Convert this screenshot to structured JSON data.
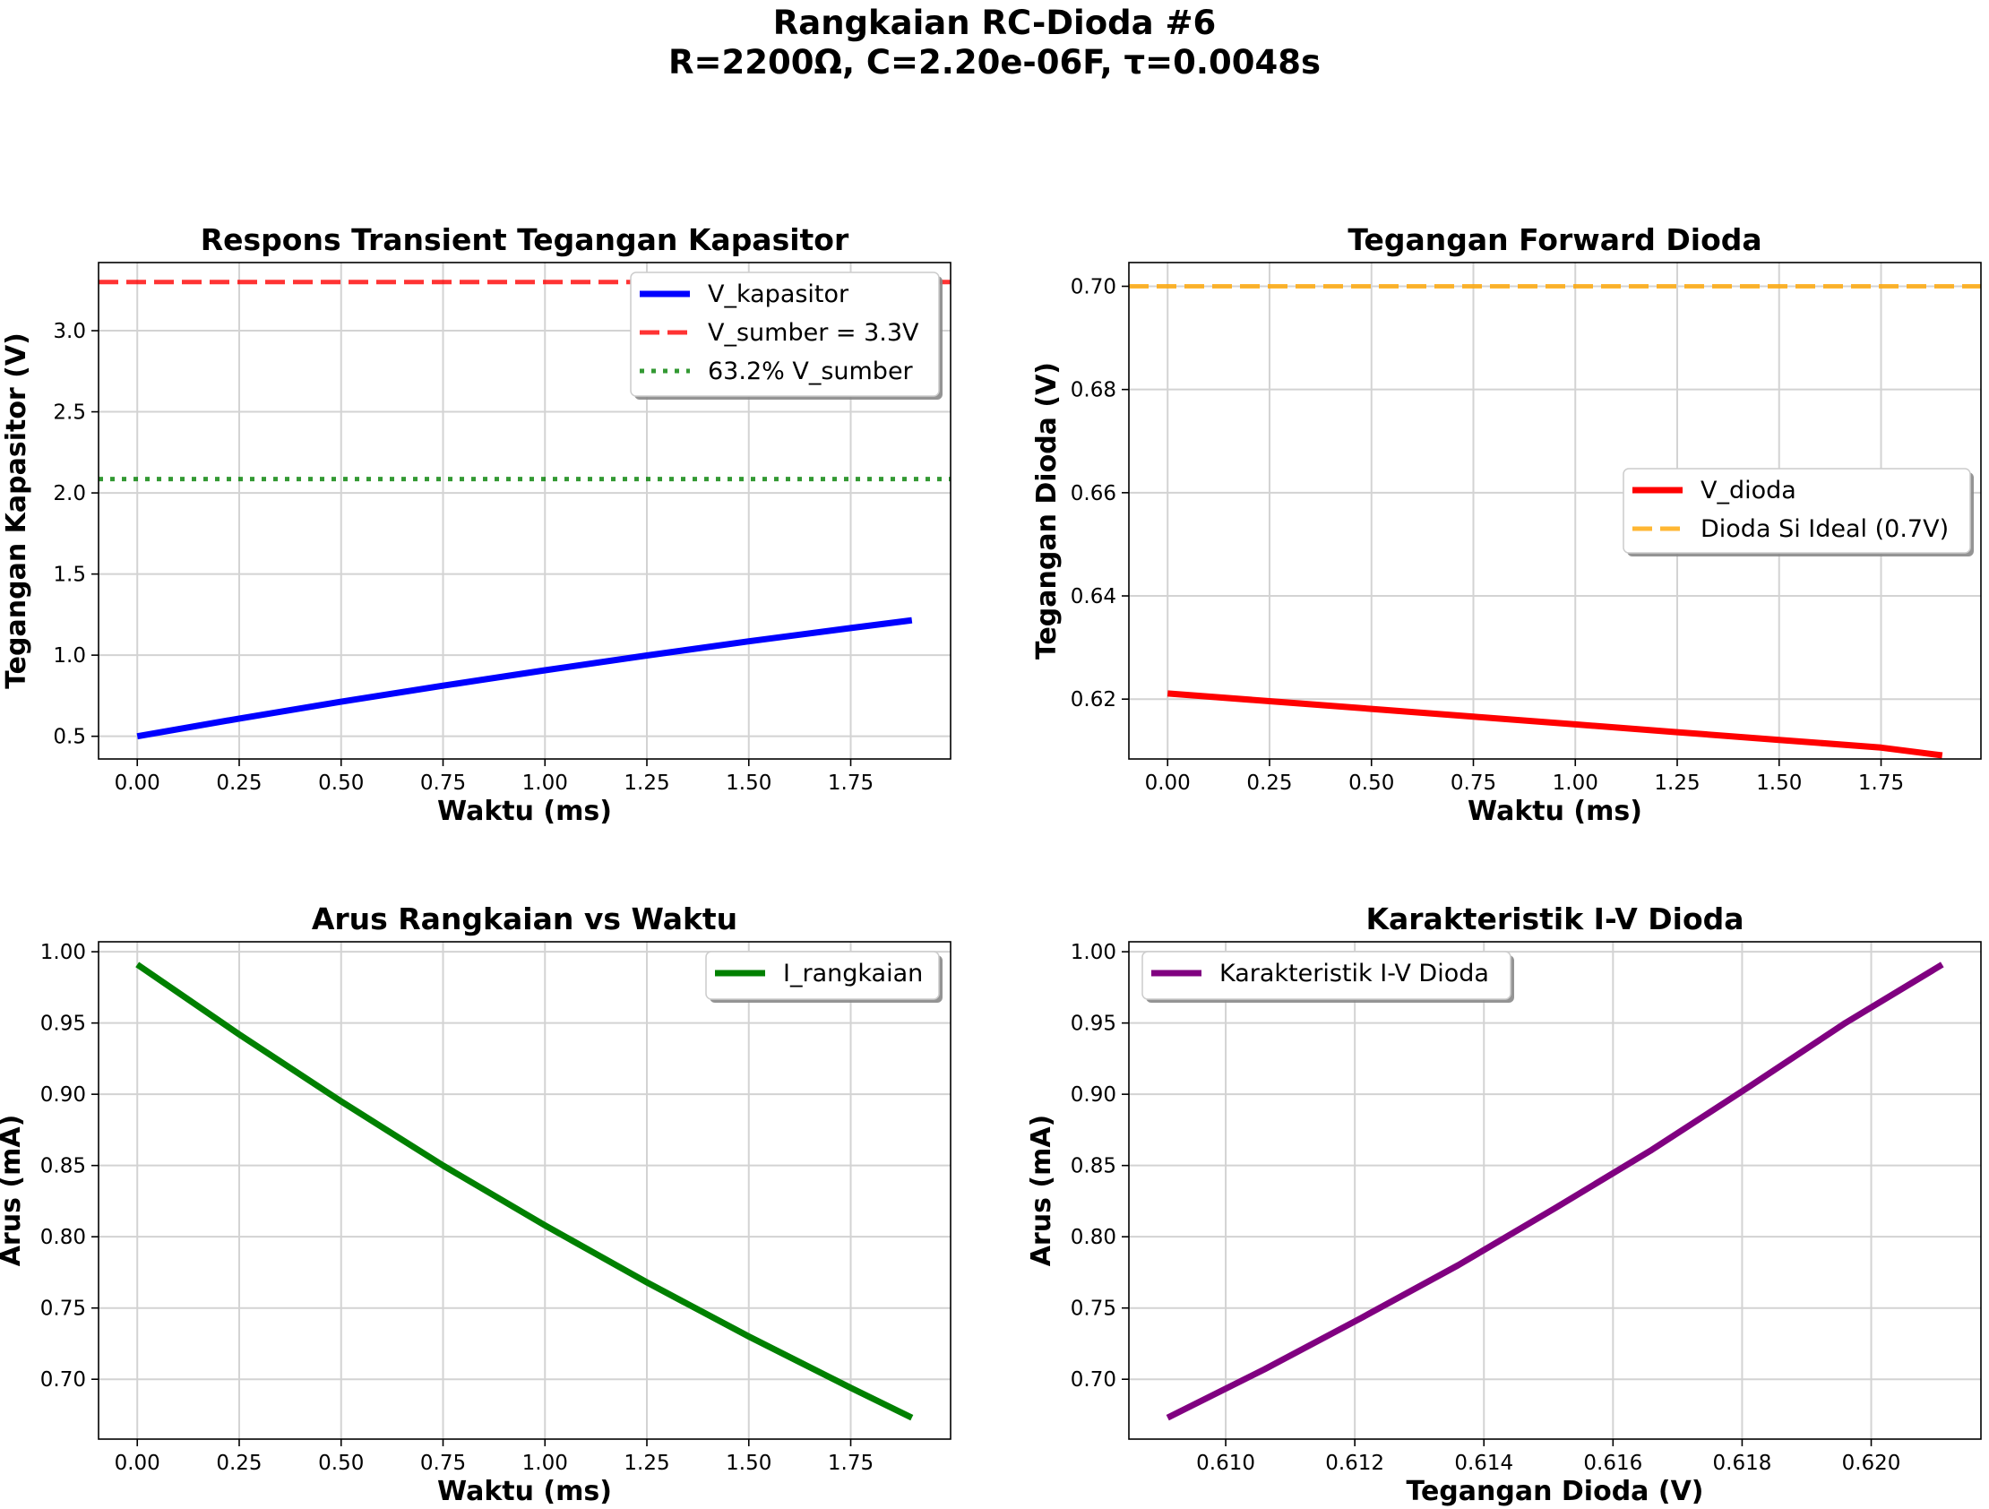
{
  "figure": {
    "title_line1": "Rangkaian RC-Dioda #6",
    "title_line2": "R=2200Ω, C=2.20e-06F, τ=0.0048s"
  },
  "chart_data": [
    {
      "type": "line",
      "title": "Respons Transient Tegangan Kapasitor",
      "xlabel": "Waktu (ms)",
      "ylabel": "Tegangan Kapasitor (V)",
      "xlim": [
        -0.095,
        1.995
      ],
      "ylim": [
        0.36,
        3.42
      ],
      "xticks": [
        0.0,
        0.25,
        0.5,
        0.75,
        1.0,
        1.25,
        1.5,
        1.75
      ],
      "xtick_labels": [
        "0.00",
        "0.25",
        "0.50",
        "0.75",
        "1.00",
        "1.25",
        "1.50",
        "1.75"
      ],
      "yticks": [
        0.5,
        1.0,
        1.5,
        2.0,
        2.5,
        3.0
      ],
      "ytick_labels": [
        "0.5",
        "1.0",
        "1.5",
        "2.0",
        "2.5",
        "3.0"
      ],
      "grid": true,
      "legend_position": "upper right",
      "series": [
        {
          "name": "V_kapasitor",
          "color": "#0000ff",
          "style": "solid",
          "x": [
            0.0,
            0.25,
            0.5,
            0.75,
            1.0,
            1.25,
            1.5,
            1.75,
            1.9
          ],
          "y": [
            0.5,
            0.609,
            0.713,
            0.812,
            0.907,
            0.998,
            1.085,
            1.167,
            1.215
          ]
        },
        {
          "name": "V_sumber = 3.3V",
          "color": "#ff0000",
          "style": "dashed",
          "hline": 3.3
        },
        {
          "name": "63.2% V_sumber",
          "color": "#008000",
          "style": "dotted",
          "hline": 2.0856
        }
      ]
    },
    {
      "type": "line",
      "title": "Tegangan Forward Dioda",
      "xlabel": "Waktu (ms)",
      "ylabel": "Tegangan Dioda (V)",
      "xlim": [
        -0.095,
        1.995
      ],
      "ylim": [
        0.6084,
        0.7046
      ],
      "xticks": [
        0.0,
        0.25,
        0.5,
        0.75,
        1.0,
        1.25,
        1.5,
        1.75
      ],
      "xtick_labels": [
        "0.00",
        "0.25",
        "0.50",
        "0.75",
        "1.00",
        "1.25",
        "1.50",
        "1.75"
      ],
      "yticks": [
        0.62,
        0.64,
        0.66,
        0.68,
        0.7
      ],
      "ytick_labels": [
        "0.62",
        "0.64",
        "0.66",
        "0.68",
        "0.70"
      ],
      "grid": true,
      "legend_position": "center right",
      "series": [
        {
          "name": "V_dioda",
          "color": "#ff0000",
          "style": "solid",
          "x": [
            0.0,
            0.25,
            0.5,
            0.75,
            1.0,
            1.25,
            1.5,
            1.75,
            1.9
          ],
          "y": [
            0.6211,
            0.6196,
            0.6181,
            0.6166,
            0.6151,
            0.6136,
            0.6121,
            0.6106,
            0.6091
          ]
        },
        {
          "name": "Dioda Si Ideal (0.7V)",
          "color": "#ffa500",
          "style": "dashed",
          "hline": 0.7
        }
      ]
    },
    {
      "type": "line",
      "title": "Arus Rangkaian vs Waktu",
      "xlabel": "Waktu (ms)",
      "ylabel": "Arus (mA)",
      "xlim": [
        -0.095,
        1.995
      ],
      "ylim": [
        0.658,
        1.007
      ],
      "xticks": [
        0.0,
        0.25,
        0.5,
        0.75,
        1.0,
        1.25,
        1.5,
        1.75
      ],
      "xtick_labels": [
        "0.00",
        "0.25",
        "0.50",
        "0.75",
        "1.00",
        "1.25",
        "1.50",
        "1.75"
      ],
      "yticks": [
        0.7,
        0.75,
        0.8,
        0.85,
        0.9,
        0.95,
        1.0
      ],
      "ytick_labels": [
        "0.70",
        "0.75",
        "0.80",
        "0.85",
        "0.90",
        "0.95",
        "1.00"
      ],
      "grid": true,
      "legend_position": "upper right",
      "series": [
        {
          "name": "I_rangkaian",
          "color": "#008000",
          "style": "solid",
          "x": [
            0.0,
            0.25,
            0.5,
            0.75,
            1.0,
            1.25,
            1.5,
            1.75,
            1.9
          ],
          "y": [
            0.991,
            0.942,
            0.895,
            0.85,
            0.808,
            0.768,
            0.73,
            0.694,
            0.673
          ]
        }
      ]
    },
    {
      "type": "line",
      "title": "Karakteristik I-V Dioda",
      "xlabel": "Tegangan Dioda (V)",
      "ylabel": "Arus (mA)",
      "xlim": [
        0.6085,
        0.6217
      ],
      "ylim": [
        0.658,
        1.007
      ],
      "xticks": [
        0.61,
        0.612,
        0.614,
        0.616,
        0.618,
        0.62
      ],
      "xtick_labels": [
        "0.610",
        "0.612",
        "0.614",
        "0.616",
        "0.618",
        "0.620"
      ],
      "yticks": [
        0.7,
        0.75,
        0.8,
        0.85,
        0.9,
        0.95,
        1.0
      ],
      "ytick_labels": [
        "0.70",
        "0.75",
        "0.80",
        "0.85",
        "0.90",
        "0.95",
        "1.00"
      ],
      "grid": true,
      "legend_position": "upper left",
      "series": [
        {
          "name": "Karakteristik I-V Dioda",
          "color": "#800080",
          "style": "solid",
          "x": [
            0.6091,
            0.6106,
            0.6121,
            0.6136,
            0.6151,
            0.6166,
            0.6181,
            0.6196,
            0.6211
          ],
          "y": [
            0.673,
            0.707,
            0.743,
            0.78,
            0.82,
            0.861,
            0.905,
            0.95,
            0.991
          ]
        }
      ]
    }
  ]
}
